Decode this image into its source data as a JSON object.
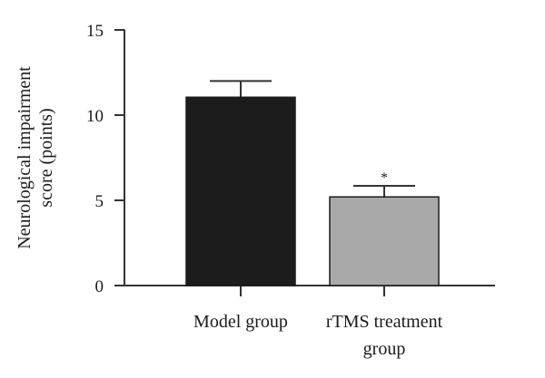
{
  "chart_data": {
    "type": "bar",
    "title": "",
    "ylabel": [
      "Neurological impairment",
      "score (points)"
    ],
    "xlabel": "",
    "ylim": [
      0,
      15
    ],
    "yticks": [
      0,
      5,
      10,
      15
    ],
    "grid": false,
    "legend": "none",
    "categories": [
      [
        "Model group"
      ],
      [
        "rTMS treatment",
        "group"
      ]
    ],
    "values": [
      11.05,
      5.2
    ],
    "errors": [
      0.95,
      0.65
    ],
    "annotations": [
      "",
      "*"
    ],
    "colors": [
      "#1c1c1c",
      "#a9a9a9"
    ]
  }
}
